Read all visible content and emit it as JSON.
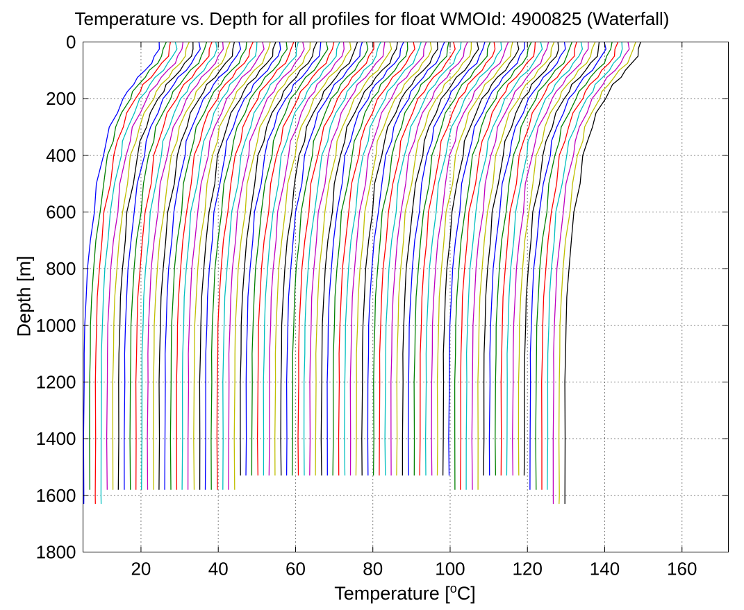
{
  "chart_data": {
    "type": "line",
    "title": "Temperature vs. Depth for all profiles for float WMOId: 4900825 (Waterfall)",
    "xlabel": "Temperature [°C]",
    "xlabel_parts": {
      "prefix": "Temperature [",
      "superscript": "o",
      "suffix": "C]"
    },
    "ylabel": "Depth [m]",
    "xlim": [
      5,
      172
    ],
    "ylim": [
      0,
      1800
    ],
    "y_reversed": true,
    "grid": true,
    "grid_style": "dotted",
    "xticks": [
      20,
      40,
      60,
      80,
      100,
      120,
      140,
      160
    ],
    "yticks": [
      0,
      200,
      400,
      600,
      800,
      1000,
      1200,
      1400,
      1600,
      1800
    ],
    "color_cycle": [
      "#0000ff",
      "#008000",
      "#ff0000",
      "#00bfbf",
      "#bf00bf",
      "#bfbf00",
      "#000000"
    ],
    "waterfall": {
      "profile_count": 84,
      "offset_step": 1.5,
      "first_profile_x_at_bottom": 5.2,
      "surface_warmth": 19.5,
      "description_note": ""
    },
    "series_template_depths": [
      0,
      25,
      50,
      75,
      100,
      125,
      150,
      175,
      200,
      250,
      300,
      350,
      400,
      500,
      600,
      700,
      800,
      900,
      1000,
      1100,
      1200,
      1400,
      1600
    ],
    "series_template_delta_temp": [
      19.5,
      19.3,
      18.6,
      17.4,
      15.8,
      14.2,
      12.6,
      11.4,
      10.3,
      8.4,
      6.9,
      5.8,
      4.9,
      3.6,
      2.5,
      1.7,
      1.0,
      0.55,
      0.28,
      0.12,
      0.05,
      0.0,
      0.0
    ],
    "profile_max_depths": [
      1630,
      1580,
      1630,
      1630,
      1580,
      1580,
      1580,
      1580,
      1580,
      1580,
      1580,
      1580,
      1580,
      1580,
      1580,
      1580,
      1580,
      1580,
      1580,
      1580,
      1580,
      1580,
      1580,
      1580,
      1580,
      1580,
      1580,
      1530,
      1530,
      1530,
      1530,
      1530,
      1530,
      1530,
      1530,
      1530,
      1530,
      1530,
      1530,
      1530,
      1530,
      1530,
      1530,
      1530,
      1530,
      1530,
      1530,
      1530,
      1530,
      1530,
      1530,
      1530,
      1530,
      1530,
      1530,
      1530,
      1530,
      1530,
      1530,
      1530,
      1530,
      1530,
      1530,
      1530,
      1580,
      1580,
      1580,
      1580,
      1580,
      1530,
      1530,
      1530,
      1530,
      1530,
      1530,
      1530,
      1530,
      1580,
      1580,
      1580,
      1580,
      1630,
      1630,
      1630
    ]
  }
}
